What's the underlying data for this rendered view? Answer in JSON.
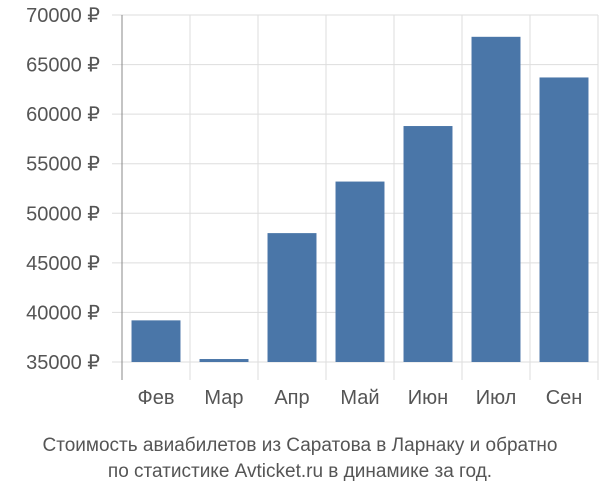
{
  "chart_data": {
    "type": "bar",
    "categories": [
      "Фев",
      "Мар",
      "Апр",
      "Май",
      "Июн",
      "Июл",
      "Сен"
    ],
    "values": [
      39200,
      35300,
      48000,
      53200,
      58800,
      67800,
      63700
    ],
    "ylim": [
      35000,
      70000
    ],
    "yticks": [
      "35000 ₽",
      "40000 ₽",
      "45000 ₽",
      "50000 ₽",
      "55000 ₽",
      "60000 ₽",
      "65000 ₽",
      "70000 ₽"
    ],
    "grid": true,
    "bar_color": "#4a76a8",
    "grid_color": "#dddddd"
  },
  "caption": {
    "line1": "Стоимость авиабилетов из Саратова в Ларнаку и обратно",
    "line2": "по статистике Avticket.ru в динамике за год."
  }
}
